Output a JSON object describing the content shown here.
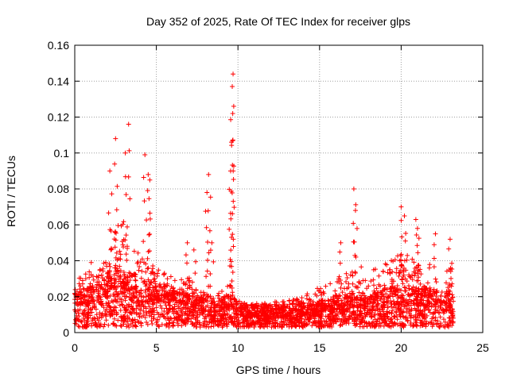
{
  "chart_data": {
    "type": "scatter",
    "title": "Day 352 of 2025, Rate Of TEC Index for receiver glps",
    "xlabel": "GPS time / hours",
    "ylabel": "ROTI / TECUs",
    "xlim": [
      0,
      25
    ],
    "ylim": [
      0,
      0.16
    ],
    "xticks": [
      0,
      5,
      10,
      15,
      20,
      25
    ],
    "yticks": [
      0,
      0.02,
      0.04,
      0.06,
      0.08,
      0.1,
      0.12,
      0.14,
      0.16
    ],
    "xtick_labels": [
      "0",
      "5",
      "10",
      "15",
      "20",
      "25"
    ],
    "ytick_labels": [
      "0",
      "0.02",
      "0.04",
      "0.06",
      "0.08",
      "0.1",
      "0.12",
      "0.14",
      "0.16"
    ],
    "grid": true,
    "marker": "+",
    "color": "#ff0000",
    "x_range_of_data": [
      0,
      23.2
    ],
    "envelope": {
      "hours": [
        0,
        0.5,
        1,
        1.5,
        2,
        2.5,
        3,
        3.5,
        4,
        4.5,
        5,
        5.5,
        6,
        6.5,
        7,
        7.5,
        8,
        8.5,
        9,
        9.5,
        10,
        10.5,
        11,
        11.5,
        12,
        12.5,
        13,
        13.5,
        14,
        14.5,
        15,
        15.5,
        16,
        16.5,
        17,
        17.5,
        18,
        18.5,
        19,
        19.5,
        20,
        20.5,
        21,
        21.5,
        22,
        22.5,
        23,
        23.2
      ],
      "median": [
        0.014,
        0.016,
        0.017,
        0.018,
        0.022,
        0.025,
        0.024,
        0.022,
        0.02,
        0.019,
        0.018,
        0.017,
        0.016,
        0.015,
        0.013,
        0.012,
        0.012,
        0.011,
        0.012,
        0.013,
        0.01,
        0.009,
        0.009,
        0.009,
        0.009,
        0.009,
        0.009,
        0.01,
        0.01,
        0.01,
        0.011,
        0.012,
        0.013,
        0.013,
        0.014,
        0.014,
        0.013,
        0.014,
        0.015,
        0.016,
        0.016,
        0.016,
        0.015,
        0.015,
        0.015,
        0.014,
        0.014,
        0.013
      ],
      "upper": [
        0.03,
        0.03,
        0.04,
        0.032,
        0.05,
        0.058,
        0.058,
        0.05,
        0.045,
        0.04,
        0.036,
        0.032,
        0.03,
        0.028,
        0.03,
        0.025,
        0.022,
        0.02,
        0.022,
        0.026,
        0.018,
        0.016,
        0.016,
        0.016,
        0.016,
        0.017,
        0.018,
        0.02,
        0.02,
        0.022,
        0.024,
        0.026,
        0.028,
        0.03,
        0.034,
        0.036,
        0.032,
        0.034,
        0.036,
        0.04,
        0.042,
        0.04,
        0.038,
        0.036,
        0.036,
        0.035,
        0.034,
        0.033
      ]
    },
    "peaks": [
      {
        "x": 2.5,
        "y": 0.108
      },
      {
        "x": 3.3,
        "y": 0.116
      },
      {
        "x": 3.1,
        "y": 0.1
      },
      {
        "x": 2.15,
        "y": 0.09
      },
      {
        "x": 4.3,
        "y": 0.099
      },
      {
        "x": 4.5,
        "y": 0.088
      },
      {
        "x": 4.6,
        "y": 0.085
      },
      {
        "x": 8.2,
        "y": 0.088
      },
      {
        "x": 8.1,
        "y": 0.078
      },
      {
        "x": 9.7,
        "y": 0.144
      },
      {
        "x": 9.65,
        "y": 0.137
      },
      {
        "x": 9.68,
        "y": 0.122
      },
      {
        "x": 9.6,
        "y": 0.106
      },
      {
        "x": 9.55,
        "y": 0.09
      },
      {
        "x": 17.1,
        "y": 0.08
      },
      {
        "x": 17.2,
        "y": 0.068
      },
      {
        "x": 20.0,
        "y": 0.07
      },
      {
        "x": 20.2,
        "y": 0.065
      },
      {
        "x": 20.9,
        "y": 0.063
      },
      {
        "x": 21.0,
        "y": 0.058
      },
      {
        "x": 23.0,
        "y": 0.052
      },
      {
        "x": 22.1,
        "y": 0.055
      },
      {
        "x": 6.9,
        "y": 0.05
      },
      {
        "x": 7.3,
        "y": 0.046
      },
      {
        "x": 8.4,
        "y": 0.05
      },
      {
        "x": 16.3,
        "y": 0.05
      }
    ]
  }
}
